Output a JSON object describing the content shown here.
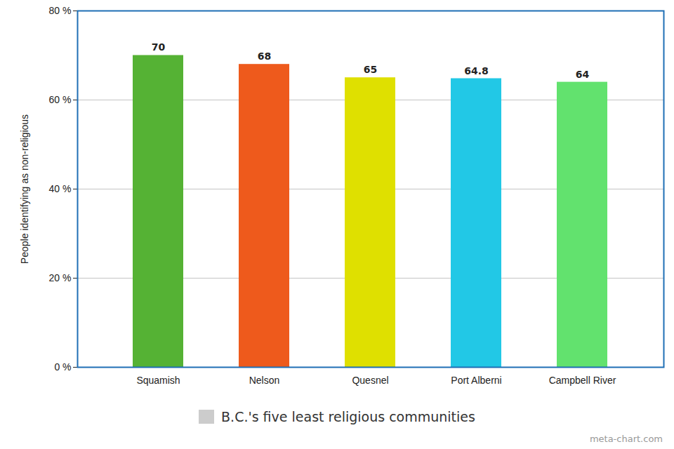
{
  "chart_data": {
    "type": "bar",
    "y_label": "People identifying as non-religious",
    "caption": "meta-chart.com",
    "categories": [
      "Squamish",
      "Nelson",
      "Quesnel",
      "Port Alberni",
      "Campbell River"
    ],
    "series": [
      {
        "name": "B.C.'s five least religious communities",
        "color": "#cccccc",
        "colors": [
          "#55b234",
          "#ee5a1c",
          "#dfe000",
          "#22c8e6",
          "#62e26e"
        ],
        "values": [
          70,
          68,
          65,
          64.8,
          64
        ]
      }
    ],
    "ylim": [
      0,
      80
    ],
    "yticks": [
      {
        "value": 0,
        "label": "0 %"
      },
      {
        "value": 20,
        "label": "20 %"
      },
      {
        "value": 40,
        "label": "40 %"
      },
      {
        "value": 60,
        "label": "60 %"
      },
      {
        "value": 80,
        "label": "80 %"
      }
    ],
    "grid": true,
    "data_labels": true,
    "legend": "bottom"
  }
}
